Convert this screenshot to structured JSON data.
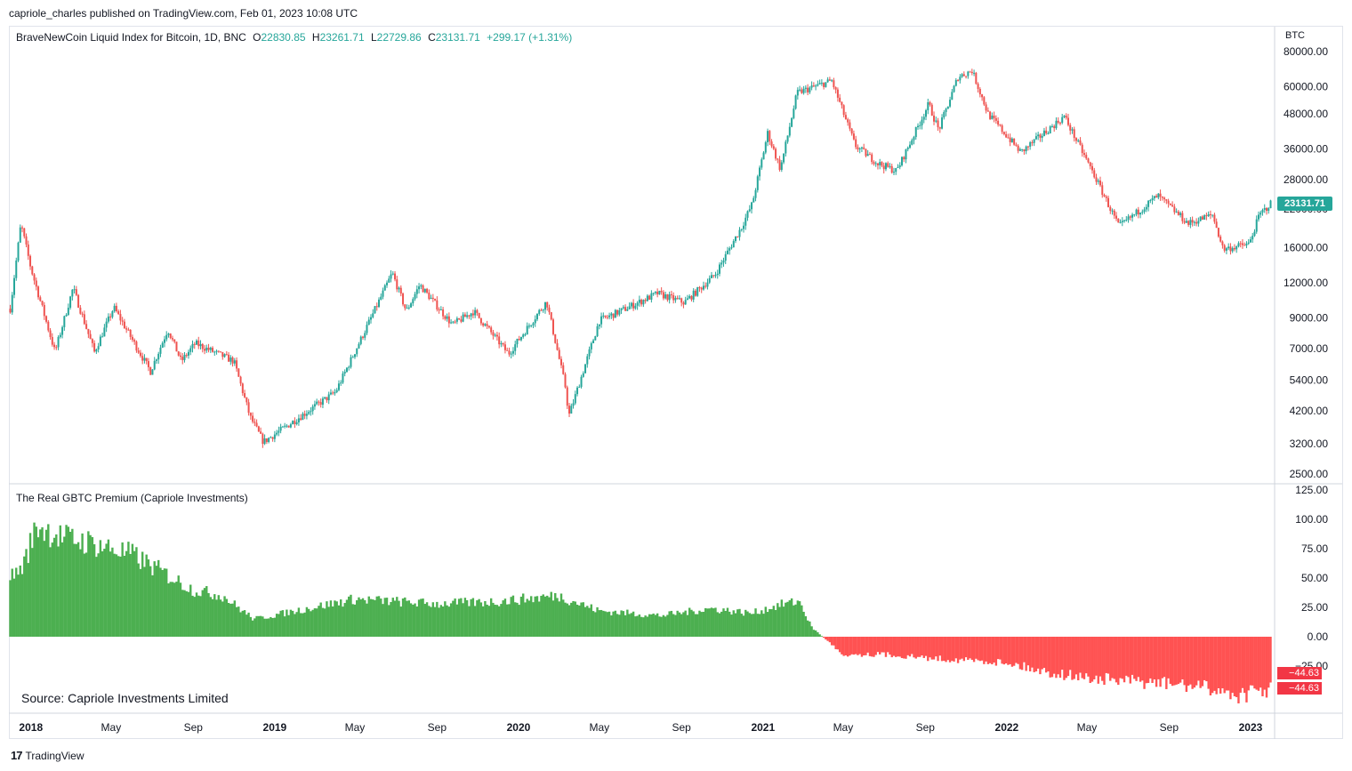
{
  "publisher_line": "capriole_charles published on TradingView.com, Feb 01, 2023 10:08 UTC",
  "legend": {
    "symbol": "BraveNewCoin Liquid Index for Bitcoin, 1D, BNC",
    "open_label": "O",
    "open": "22830.85",
    "high_label": "H",
    "high": "23261.71",
    "low_label": "L",
    "low": "22729.86",
    "close_label": "C",
    "close": "23131.71",
    "change": "+299.17 (+1.31%)"
  },
  "currency_unit": "BTC",
  "price_badge": "23131.71",
  "indicator_title": "The Real GBTC Premium (Capriole Investments)",
  "indicator_badges": [
    "−44.63",
    "−44.63"
  ],
  "source_text": "Source: Capriole Investments Limited",
  "footer_brand": "TradingView",
  "colors": {
    "up": "#26a69a",
    "down": "#ef5350",
    "premium_pos": "#4caf50",
    "premium_neg": "#ff5252",
    "badge": "#26a69a"
  },
  "chart_data": [
    {
      "type": "line",
      "name": "price",
      "scale": "log",
      "y_ticks": [
        2500,
        3200,
        4200,
        5400,
        7000,
        9000,
        12000,
        16000,
        22000,
        28000,
        36000,
        48000,
        60000,
        80000
      ],
      "y_tick_labels": [
        "2500.00",
        "3200.00",
        "4200.00",
        "5400.00",
        "7000.00",
        "9000.00",
        "12000.00",
        "16000.00",
        "22000.00",
        "28000.00",
        "36000.00",
        "48000.00",
        "60000.00",
        "80000.00"
      ],
      "x_ticks": [
        "2018",
        "May",
        "Sep",
        "2019",
        "May",
        "Sep",
        "2020",
        "May",
        "Sep",
        "2021",
        "May",
        "Sep",
        "2022",
        "May",
        "Sep",
        "2023"
      ],
      "x": [
        "2017-12-01",
        "2017-12-17",
        "2018-01-01",
        "2018-02-06",
        "2018-03-05",
        "2018-04-06",
        "2018-05-05",
        "2018-06-29",
        "2018-07-25",
        "2018-08-14",
        "2018-09-04",
        "2018-11-01",
        "2018-11-25",
        "2018-12-15",
        "2019-01-15",
        "2019-04-02",
        "2019-05-15",
        "2019-06-26",
        "2019-07-17",
        "2019-08-06",
        "2019-09-24",
        "2019-10-26",
        "2019-12-17",
        "2020-02-12",
        "2020-03-12",
        "2020-03-16",
        "2020-05-01",
        "2020-06-01",
        "2020-07-27",
        "2020-09-05",
        "2020-10-21",
        "2020-11-30",
        "2020-12-16",
        "2021-01-08",
        "2021-01-27",
        "2021-02-21",
        "2021-04-14",
        "2021-05-19",
        "2021-06-22",
        "2021-07-20",
        "2021-09-06",
        "2021-09-21",
        "2021-10-20",
        "2021-11-10",
        "2021-12-04",
        "2022-01-22",
        "2022-03-28",
        "2022-05-12",
        "2022-06-18",
        "2022-08-15",
        "2022-09-30",
        "2022-11-05",
        "2022-11-21",
        "2022-12-30",
        "2023-01-14",
        "2023-02-01"
      ],
      "values": [
        9700,
        19500,
        13500,
        6800,
        11500,
        6800,
        9800,
        5800,
        8200,
        6300,
        7300,
        6300,
        4000,
        3250,
        3650,
        4900,
        8000,
        13000,
        9500,
        11800,
        8500,
        9500,
        6700,
        10300,
        5000,
        4000,
        8800,
        9500,
        11000,
        10200,
        12800,
        19000,
        23000,
        41000,
        30500,
        57000,
        63000,
        37000,
        32000,
        30000,
        52000,
        42000,
        65000,
        68500,
        48000,
        35000,
        47000,
        29000,
        19000,
        24500,
        19500,
        21000,
        15800,
        16500,
        20900,
        23131
      ]
    },
    {
      "type": "bar",
      "name": "The Real GBTC Premium (Capriole Investments)",
      "y_ticks": [
        -25,
        0,
        25,
        50,
        75,
        100,
        125
      ],
      "y_tick_labels": [
        "−25.00",
        "0.00",
        "25.00",
        "50.00",
        "75.00",
        "100.00",
        "125.00"
      ],
      "x": [
        "2017-12-01",
        "2017-12-20",
        "2018-01-10",
        "2018-02-15",
        "2018-04-01",
        "2018-06-01",
        "2018-09-01",
        "2018-10-15",
        "2018-12-01",
        "2019-02-01",
        "2019-05-01",
        "2019-07-01",
        "2019-09-01",
        "2019-12-01",
        "2020-03-01",
        "2020-05-01",
        "2020-08-01",
        "2020-10-15",
        "2020-12-15",
        "2021-02-01",
        "2021-02-25",
        "2021-03-15",
        "2021-05-01",
        "2021-07-01",
        "2021-09-01",
        "2021-11-01",
        "2022-01-01",
        "2022-03-01",
        "2022-05-01",
        "2022-07-01",
        "2022-09-01",
        "2022-11-01",
        "2022-12-15",
        "2023-02-01"
      ],
      "values": [
        50,
        60,
        95,
        85,
        80,
        70,
        40,
        35,
        15,
        22,
        32,
        30,
        28,
        30,
        35,
        22,
        18,
        24,
        20,
        28,
        30,
        8,
        -15,
        -15,
        -18,
        -20,
        -22,
        -30,
        -35,
        -38,
        -40,
        -44,
        -50,
        -44.63
      ]
    }
  ]
}
